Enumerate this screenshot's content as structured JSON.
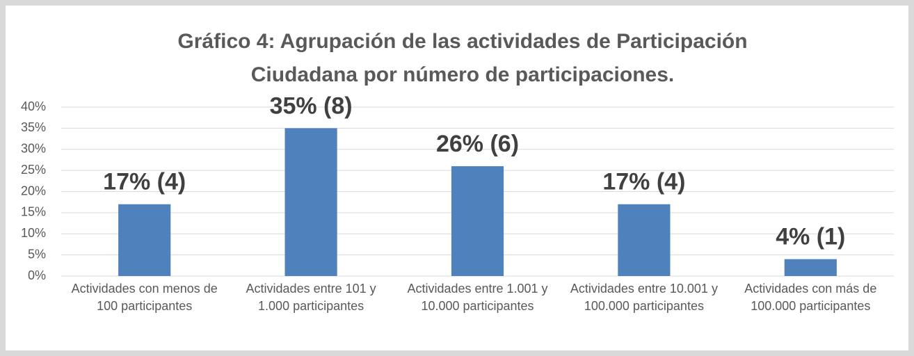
{
  "chart_data": {
    "type": "bar",
    "title": "Gráfico 4: Agrupación de las actividades de Participación Ciudadana por número de participaciones.",
    "categories": [
      "Actividades con menos de 100 participantes",
      "Actividades entre 101 y 1.000 participantes",
      "Actividades entre 1.001 y 10.000 participantes",
      "Actividades entre 10.001 y 100.000 participantes",
      "Actividades con más de 100.000 participantes"
    ],
    "values": [
      17,
      35,
      26,
      17,
      4
    ],
    "value_labels": [
      "17% (4)",
      "35% (8)",
      "26% (6)",
      "17% (4)",
      "4% (1)"
    ],
    "color": "#4f81bd",
    "ylim": [
      0,
      40
    ],
    "yticks": [
      {
        "value": 0,
        "label": "0%"
      },
      {
        "value": 5,
        "label": "5%"
      },
      {
        "value": 10,
        "label": "10%"
      },
      {
        "value": 15,
        "label": "15%"
      },
      {
        "value": 20,
        "label": "20%"
      },
      {
        "value": 25,
        "label": "25%"
      },
      {
        "value": 30,
        "label": "30%"
      },
      {
        "value": 35,
        "label": "35%"
      },
      {
        "value": 40,
        "label": "40%"
      }
    ],
    "grid": true
  }
}
